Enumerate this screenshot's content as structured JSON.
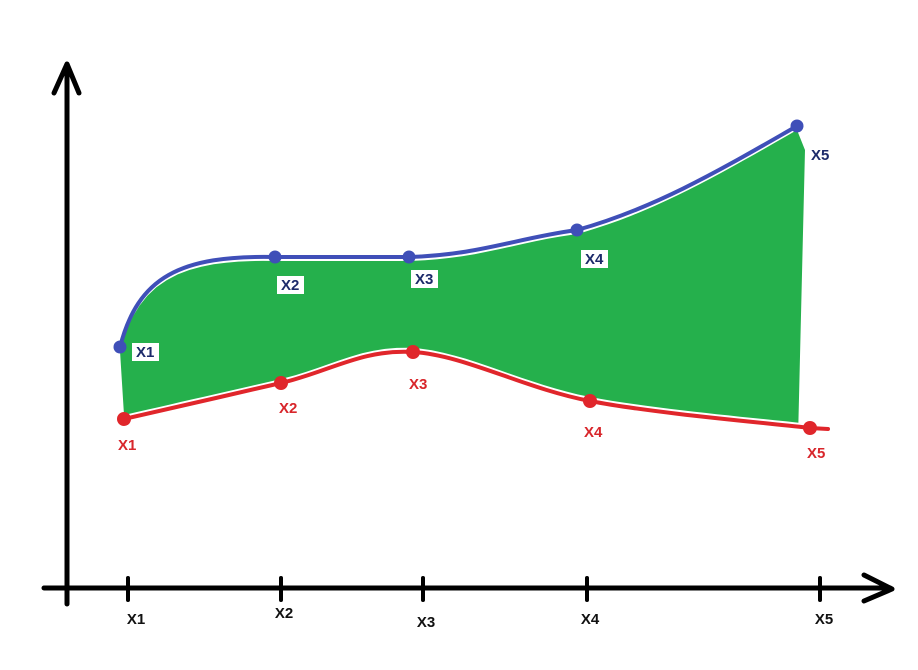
{
  "colors": {
    "background": "#ffffff",
    "axis": "#000000",
    "upper_curve": "#3f4fb8",
    "upper_label": "#1c2a6a",
    "lower_curve": "#e0262b",
    "lower_label": "#d8262b",
    "fill": "#25b04c",
    "axis_label": "#111111"
  },
  "chart_data": {
    "type": "area",
    "x": [
      "X1",
      "X2",
      "X3",
      "X4",
      "X5"
    ],
    "series": [
      {
        "color": "#3f4fb8",
        "labels": [
          "X1",
          "X2",
          "X3",
          "X4",
          "X5"
        ],
        "values": [
          5.4,
          7.4,
          7.4,
          8.0,
          10.3
        ]
      },
      {
        "color": "#e0262b",
        "labels": [
          "X1",
          "X2",
          "X3",
          "X4",
          "X5"
        ],
        "values": [
          3.8,
          4.6,
          5.3,
          4.2,
          3.6
        ]
      }
    ],
    "fill_between": true,
    "fill_color": "#25b04c",
    "grid": false
  }
}
